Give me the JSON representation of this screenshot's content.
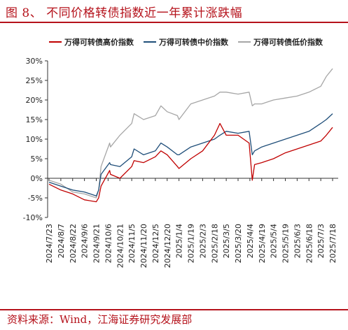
{
  "figure": {
    "title": "图 8、 不同价格转债指数近一年累计涨跌幅",
    "source": "资料来源：Wind，江海证券研究发展部"
  },
  "colors": {
    "brand": "#b5121b",
    "series": [
      "#c00000",
      "#1f4e79",
      "#a6a6a6"
    ]
  },
  "chart_data": {
    "type": "line",
    "title": "",
    "xlabel": "",
    "ylabel": "",
    "ylim": [
      -0.1,
      0.3
    ],
    "yticks": [
      "-10%",
      "-5%",
      "0%",
      "5%",
      "10%",
      "15%",
      "20%",
      "25%",
      "30%"
    ],
    "grid": false,
    "legend_position": "top",
    "x_tick_labels": [
      "2024/7/23",
      "2024/8/7",
      "2024/8/22",
      "2024/9/6",
      "2024/9/21",
      "2024/10/6",
      "2024/10/21",
      "2024/11/5",
      "2024/11/20",
      "2024/12/5",
      "2024/12/20",
      "2025/1/4",
      "2025/1/19",
      "2025/2/3",
      "2025/2/18",
      "2025/3/5",
      "2025/3/20",
      "2025/4/4",
      "2025/4/19",
      "2025/5/4",
      "2025/5/19",
      "2025/6/3",
      "2025/6/18",
      "2025/7/3",
      "2025/7/18"
    ],
    "x": [
      "2024/7/23",
      "2024/8/7",
      "2024/8/22",
      "2024/9/6",
      "2024/9/21",
      "2024/9/24",
      "2024/9/27",
      "2024/10/8",
      "2024/10/9",
      "2024/10/21",
      "2024/11/5",
      "2024/11/8",
      "2024/11/20",
      "2024/12/5",
      "2024/12/12",
      "2024/12/20",
      "2025/1/2",
      "2025/1/4",
      "2025/1/19",
      "2025/2/3",
      "2025/2/18",
      "2025/2/25",
      "2025/3/5",
      "2025/3/20",
      "2025/4/3",
      "2025/4/7",
      "2025/4/10",
      "2025/4/19",
      "2025/5/4",
      "2025/5/19",
      "2025/6/3",
      "2025/6/18",
      "2025/7/3",
      "2025/7/10",
      "2025/7/18"
    ],
    "series": [
      {
        "name": "万得可转债高价指数",
        "values": [
          -0.015,
          -0.03,
          -0.04,
          -0.055,
          -0.06,
          -0.05,
          -0.02,
          0.02,
          0.01,
          0.0,
          0.03,
          0.045,
          0.04,
          0.055,
          0.07,
          0.06,
          0.03,
          0.025,
          0.05,
          0.07,
          0.11,
          0.14,
          0.11,
          0.11,
          0.09,
          -0.005,
          0.035,
          0.04,
          0.05,
          0.065,
          0.075,
          0.085,
          0.095,
          0.11,
          0.13
        ]
      },
      {
        "name": "万得可转债中价指数",
        "values": [
          -0.01,
          -0.02,
          -0.03,
          -0.035,
          -0.045,
          -0.03,
          0.01,
          0.04,
          0.035,
          0.03,
          0.055,
          0.075,
          0.06,
          0.07,
          0.09,
          0.08,
          0.06,
          0.06,
          0.08,
          0.09,
          0.1,
          0.11,
          0.12,
          0.115,
          0.12,
          0.06,
          0.07,
          0.08,
          0.09,
          0.1,
          0.11,
          0.12,
          0.14,
          0.15,
          0.165
        ]
      },
      {
        "name": "万得可转债低价指数",
        "values": [
          -0.005,
          -0.015,
          -0.035,
          -0.04,
          -0.05,
          -0.03,
          0.03,
          0.09,
          0.08,
          0.11,
          0.14,
          0.165,
          0.15,
          0.16,
          0.185,
          0.17,
          0.16,
          0.15,
          0.19,
          0.2,
          0.21,
          0.22,
          0.22,
          0.215,
          0.22,
          0.185,
          0.19,
          0.19,
          0.2,
          0.205,
          0.21,
          0.22,
          0.235,
          0.26,
          0.28
        ]
      }
    ]
  }
}
